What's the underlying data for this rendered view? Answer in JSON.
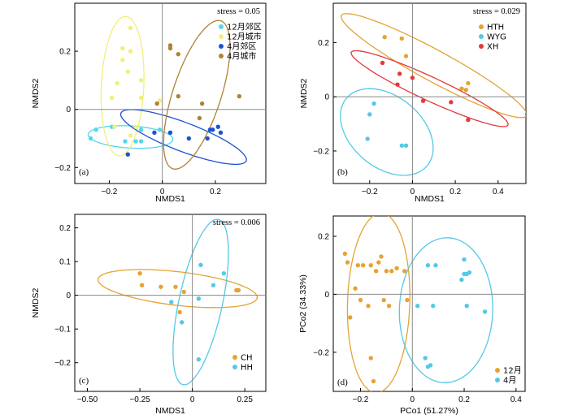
{
  "colors": {
    "dec_suburb": "#57d6ec",
    "dec_urban": "#f0f07a",
    "apr_suburb": "#1c53d3",
    "apr_urban": "#ad8432",
    "HTH": "#e6a332",
    "WYG": "#55c8e6",
    "XH": "#e23a3a",
    "CH": "#e6a332",
    "HH": "#55c8e6",
    "dec": "#e6a332",
    "apr": "#55c8e6"
  },
  "chart_data": [
    {
      "panel_label": "(a)",
      "type": "scatter",
      "xlabel": "NMDS1",
      "ylabel": "NMDS2",
      "xlim": [
        -0.33,
        0.39
      ],
      "ylim": [
        -0.255,
        0.365
      ],
      "xticks": [
        -0.2,
        0,
        0.2
      ],
      "xtick_labels": [
        "−0.2",
        "0",
        "0.2"
      ],
      "yticks": [
        -0.2,
        0,
        0.2
      ],
      "ytick_labels": [
        "−0.2",
        "0",
        "0.2"
      ],
      "stress": "stress = 0.05",
      "legend_position": "top-right",
      "series": [
        {
          "name": "12月郊区",
          "color_key": "dec_suburb",
          "points": [
            [
              -0.27,
              -0.1
            ],
            [
              -0.25,
              -0.07
            ],
            [
              -0.19,
              -0.06
            ],
            [
              -0.14,
              -0.11
            ],
            [
              -0.1,
              -0.11
            ],
            [
              -0.08,
              -0.07
            ],
            [
              -0.08,
              -0.11
            ],
            [
              -0.01,
              -0.07
            ]
          ],
          "ellipse": {
            "cx": -0.12,
            "cy": -0.095,
            "rx": 0.16,
            "ry": 0.038,
            "angle": -3
          }
        },
        {
          "name": "12月城市",
          "color_key": "dec_urban",
          "points": [
            [
              -0.12,
              0.28
            ],
            [
              -0.12,
              0.2
            ],
            [
              -0.15,
              0.21
            ],
            [
              -0.15,
              0.17
            ],
            [
              -0.13,
              0.13
            ],
            [
              -0.08,
              0.1
            ],
            [
              -0.17,
              0.09
            ],
            [
              -0.19,
              0.04
            ],
            [
              -0.08,
              0.04
            ],
            [
              -0.01,
              0.03
            ],
            [
              -0.18,
              -0.06
            ],
            [
              -0.1,
              -0.06
            ],
            [
              -0.12,
              -0.09
            ]
          ],
          "ellipse": {
            "cx": -0.15,
            "cy": 0.08,
            "rx": 0.24,
            "ry": 0.08,
            "angle": 87
          }
        },
        {
          "name": "4月郊区",
          "color_key": "apr_suburb",
          "points": [
            [
              -0.13,
              -0.155
            ],
            [
              0.03,
              -0.08
            ],
            [
              0.1,
              -0.1
            ],
            [
              0.17,
              -0.1
            ],
            [
              0.18,
              -0.07
            ],
            [
              0.19,
              -0.07
            ],
            [
              0.21,
              -0.06
            ],
            [
              0.22,
              -0.08
            ],
            [
              -0.03,
              -0.08
            ]
          ],
          "ellipse": {
            "cx": 0.08,
            "cy": -0.095,
            "rx": 0.25,
            "ry": 0.05,
            "angle": -19
          }
        },
        {
          "name": "4月城市",
          "color_key": "apr_urban",
          "points": [
            [
              0.03,
              0.22
            ],
            [
              0.03,
              0.21
            ],
            [
              0.06,
              0.19
            ],
            [
              0.06,
              0.045
            ],
            [
              0.15,
              0.02
            ],
            [
              0.29,
              0.045
            ],
            [
              0.14,
              -0.03
            ],
            [
              -0.02,
              0.02
            ]
          ],
          "ellipse": {
            "cx": 0.13,
            "cy": 0.05,
            "rx": 0.27,
            "ry": 0.09,
            "angle": 70
          }
        }
      ]
    },
    {
      "panel_label": "(b)",
      "type": "scatter",
      "xlabel": "NMDS1",
      "ylabel": "NMDS2",
      "xlim": [
        -0.37,
        0.53
      ],
      "ylim": [
        -0.32,
        0.345
      ],
      "xticks": [
        -0.2,
        0,
        0.2,
        0.4
      ],
      "xtick_labels": [
        "−0.2",
        "0",
        "0.2",
        "0.4"
      ],
      "yticks": [
        -0.2,
        0,
        0.2
      ],
      "ytick_labels": [
        "−0.2",
        "0",
        "0.2"
      ],
      "stress": "stress = 0.029",
      "legend_position": "top-right",
      "series": [
        {
          "name": "HTH",
          "color_key": "HTH",
          "points": [
            [
              -0.13,
              0.22
            ],
            [
              -0.05,
              0.215
            ],
            [
              -0.03,
              0.15
            ],
            [
              0.23,
              0.03
            ],
            [
              0.25,
              0.025
            ],
            [
              0.26,
              0.05
            ]
          ],
          "ellipse": {
            "cx": 0.1,
            "cy": 0.115,
            "rx": 0.47,
            "ry": 0.06,
            "angle": -23
          }
        },
        {
          "name": "WYG",
          "color_key": "WYG",
          "points": [
            [
              -0.18,
              -0.025
            ],
            [
              -0.2,
              -0.065
            ],
            [
              -0.21,
              -0.155
            ],
            [
              -0.05,
              -0.18
            ],
            [
              -0.03,
              -0.18
            ]
          ],
          "ellipse": {
            "cx": -0.12,
            "cy": -0.13,
            "rx": 0.23,
            "ry": 0.14,
            "angle": -25
          }
        },
        {
          "name": "XH",
          "color_key": "XH",
          "points": [
            [
              -0.14,
              0.125
            ],
            [
              -0.06,
              0.085
            ],
            [
              0.0,
              0.07
            ],
            [
              0.05,
              -0.015
            ],
            [
              0.18,
              -0.02
            ],
            [
              0.26,
              -0.085
            ],
            [
              -0.07,
              0.045
            ]
          ],
          "ellipse": {
            "cx": 0.08,
            "cy": 0.03,
            "rx": 0.39,
            "ry": 0.045,
            "angle": -20
          }
        }
      ]
    },
    {
      "panel_label": "(c)",
      "type": "scatter",
      "xlabel": "NMDS1",
      "ylabel": "NMDS2",
      "xlim": [
        -0.56,
        0.35
      ],
      "ylim": [
        -0.285,
        0.24
      ],
      "xticks": [
        -0.5,
        -0.25,
        0,
        0.25
      ],
      "xtick_labels": [
        "−0.50",
        "−0.25",
        "0",
        "0.25"
      ],
      "yticks": [
        -0.2,
        -0.1,
        0,
        0.1,
        0.2
      ],
      "ytick_labels": [
        "−0.2",
        "−0.1",
        "0",
        "0.1",
        "0.2"
      ],
      "stress": "stress = 0.006",
      "legend_position": "bottom-left",
      "series": [
        {
          "name": "CH",
          "color_key": "CH",
          "points": [
            [
              -0.25,
              0.065
            ],
            [
              -0.24,
              0.03
            ],
            [
              -0.15,
              0.025
            ],
            [
              -0.08,
              0.025
            ],
            [
              -0.04,
              0.01
            ],
            [
              0.21,
              0.015
            ],
            [
              0.22,
              0.015
            ],
            [
              -0.06,
              -0.05
            ]
          ],
          "ellipse": {
            "cx": -0.07,
            "cy": 0.02,
            "rx": 0.38,
            "ry": 0.05,
            "angle": -4
          }
        },
        {
          "name": "HH",
          "color_key": "HH",
          "points": [
            [
              0.04,
              0.09
            ],
            [
              0.15,
              0.065
            ],
            [
              0.1,
              0.03
            ],
            [
              0.03,
              -0.01
            ],
            [
              -0.1,
              -0.02
            ],
            [
              -0.05,
              -0.08
            ],
            [
              0.03,
              -0.19
            ]
          ],
          "ellipse": {
            "cx": 0.04,
            "cy": -0.02,
            "rx": 0.26,
            "ry": 0.1,
            "angle": 69
          }
        }
      ]
    },
    {
      "panel_label": "(d)",
      "type": "scatter",
      "xlabel": "PCo1 (51.27%)",
      "ylabel": "PCo2 (34.33%)",
      "xlim": [
        -0.305,
        0.435
      ],
      "ylim": [
        -0.335,
        0.27
      ],
      "xticks": [
        -0.2,
        0,
        0.2,
        0.4
      ],
      "xtick_labels": [
        "−0.2",
        "0",
        "0.2",
        "0.4"
      ],
      "yticks": [
        -0.2,
        0,
        0.2
      ],
      "ytick_labels": [
        "−0.2",
        "0",
        "0.2"
      ],
      "stress": "",
      "legend_position": "bottom-right",
      "series": [
        {
          "name": "12月",
          "color_key": "dec",
          "points": [
            [
              -0.26,
              0.14
            ],
            [
              -0.25,
              0.11
            ],
            [
              -0.21,
              0.1
            ],
            [
              -0.19,
              0.1
            ],
            [
              -0.16,
              0.1
            ],
            [
              -0.13,
              0.11
            ],
            [
              -0.14,
              0.08
            ],
            [
              -0.12,
              0.13
            ],
            [
              -0.1,
              0.08
            ],
            [
              -0.08,
              0.08
            ],
            [
              -0.06,
              0.09
            ],
            [
              -0.03,
              0.08
            ],
            [
              -0.22,
              0.02
            ],
            [
              -0.2,
              -0.02
            ],
            [
              -0.11,
              -0.02
            ],
            [
              -0.02,
              -0.02
            ],
            [
              -0.17,
              -0.04
            ],
            [
              -0.09,
              -0.04
            ],
            [
              -0.24,
              -0.08
            ],
            [
              -0.16,
              -0.22
            ],
            [
              -0.15,
              -0.3
            ]
          ],
          "ellipse": {
            "cx": -0.13,
            "cy": -0.03,
            "rx": 0.31,
            "ry": 0.12,
            "angle": 88
          }
        },
        {
          "name": "4月",
          "color_key": "apr",
          "points": [
            [
              0.06,
              0.1
            ],
            [
              0.09,
              0.1
            ],
            [
              0.2,
              0.12
            ],
            [
              0.2,
              0.07
            ],
            [
              0.21,
              0.07
            ],
            [
              0.22,
              0.075
            ],
            [
              0.19,
              0.05
            ],
            [
              0.02,
              -0.04
            ],
            [
              0.08,
              -0.04
            ],
            [
              0.21,
              -0.04
            ],
            [
              0.28,
              -0.06
            ],
            [
              0.05,
              -0.22
            ],
            [
              0.06,
              -0.25
            ],
            [
              0.07,
              -0.245
            ]
          ],
          "ellipse": {
            "cx": 0.13,
            "cy": -0.055,
            "rx": 0.25,
            "ry": 0.18,
            "angle": 88
          }
        }
      ]
    }
  ]
}
